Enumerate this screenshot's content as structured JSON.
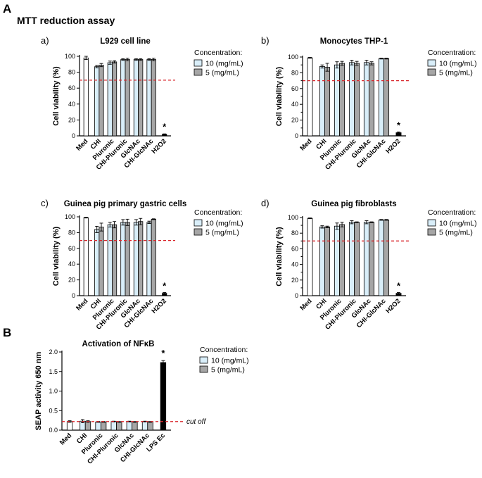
{
  "section_a": {
    "letter": "A",
    "title": "MTT reduction assay"
  },
  "section_b": {
    "letter": "B"
  },
  "colors": {
    "light": "#d9eef9",
    "grey": "#a6a6a6",
    "white": "#ffffff",
    "black": "#000000",
    "cutoff": "#d9262b"
  },
  "chart_data": [
    {
      "id": "a",
      "type": "bar",
      "panel_label": "a)",
      "title": "L929 cell line",
      "ylabel": "Cell viability (%)",
      "xlabel": "",
      "ylim": [
        0,
        100
      ],
      "yticks": [
        0,
        20,
        40,
        60,
        80,
        100
      ],
      "reference_line": 70,
      "legend_title": "Concentration:",
      "legend": [
        "10 (mg/mL)",
        "5 (mg/mL)"
      ],
      "categories": [
        "Med",
        "CHI",
        "Pluronic",
        "CHI-Pluronic",
        "GlcNAc",
        "CHI-GlcNAc",
        "H2O2"
      ],
      "bars": [
        {
          "cat": 0,
          "value": 98,
          "err": 2,
          "style": "white"
        },
        {
          "cat": 1,
          "value": 87,
          "err": 1.5,
          "style": "light"
        },
        {
          "cat": 1,
          "value": 89,
          "err": 2,
          "style": "grey"
        },
        {
          "cat": 2,
          "value": 92,
          "err": 2,
          "style": "light"
        },
        {
          "cat": 2,
          "value": 93,
          "err": 1.5,
          "style": "grey"
        },
        {
          "cat": 3,
          "value": 96,
          "err": 1,
          "style": "light"
        },
        {
          "cat": 3,
          "value": 96,
          "err": 1.5,
          "style": "grey"
        },
        {
          "cat": 4,
          "value": 96,
          "err": 1,
          "style": "light"
        },
        {
          "cat": 4,
          "value": 96,
          "err": 1,
          "style": "grey"
        },
        {
          "cat": 5,
          "value": 96,
          "err": 1,
          "style": "light"
        },
        {
          "cat": 5,
          "value": 96,
          "err": 1.5,
          "style": "grey"
        },
        {
          "cat": 6,
          "value": 2,
          "err": 0.5,
          "style": "black"
        }
      ],
      "annotations": [
        {
          "cat": 6,
          "value": 2,
          "text": "*"
        }
      ]
    },
    {
      "id": "b",
      "type": "bar",
      "panel_label": "b)",
      "title": "Monocytes THP-1",
      "ylabel": "Cell viability (%)",
      "xlabel": "",
      "ylim": [
        0,
        100
      ],
      "yticks": [
        0,
        10,
        20,
        30,
        40,
        50,
        60,
        70,
        80,
        90,
        100
      ],
      "reference_line": 70,
      "legend_title": "Concentration:",
      "legend": [
        "10 (mg/mL)",
        "5 (mg/mL)"
      ],
      "categories": [
        "Med",
        "CHI",
        "Pluronic",
        "CHI-Pluronic",
        "GlcNAc",
        "CHI-GlcNAc",
        "H2O2"
      ],
      "bars": [
        {
          "cat": 0,
          "value": 99,
          "err": 0.5,
          "style": "white"
        },
        {
          "cat": 1,
          "value": 88,
          "err": 2,
          "style": "light"
        },
        {
          "cat": 1,
          "value": 87,
          "err": 5,
          "style": "grey"
        },
        {
          "cat": 2,
          "value": 90,
          "err": 4,
          "style": "light"
        },
        {
          "cat": 2,
          "value": 92,
          "err": 2.5,
          "style": "grey"
        },
        {
          "cat": 3,
          "value": 93,
          "err": 3,
          "style": "light"
        },
        {
          "cat": 3,
          "value": 92,
          "err": 2.5,
          "style": "grey"
        },
        {
          "cat": 4,
          "value": 93,
          "err": 3,
          "style": "light"
        },
        {
          "cat": 4,
          "value": 92,
          "err": 2,
          "style": "grey"
        },
        {
          "cat": 5,
          "value": 98,
          "err": 0.5,
          "style": "light"
        },
        {
          "cat": 5,
          "value": 98,
          "err": 0.5,
          "style": "grey"
        },
        {
          "cat": 6,
          "value": 4,
          "err": 1,
          "style": "black"
        }
      ],
      "annotations": [
        {
          "cat": 6,
          "value": 4,
          "text": "*"
        }
      ]
    },
    {
      "id": "c",
      "type": "bar",
      "panel_label": "c)",
      "title": "Guinea pig primary gastric cells",
      "ylabel": "Cell viability (%)",
      "xlabel": "",
      "ylim": [
        0,
        100
      ],
      "yticks": [
        0,
        20,
        40,
        60,
        80,
        100
      ],
      "reference_line": 70,
      "legend_title": "Concentration:",
      "legend": [
        "10 (mg/mL)",
        "5 (mg/mL)"
      ],
      "categories": [
        "Med",
        "CHI",
        "Pluronic",
        "CHI-Pluronic",
        "GlcNAc",
        "CHI-GlcNAc",
        "H2O2"
      ],
      "bars": [
        {
          "cat": 0,
          "value": 99,
          "err": 0.5,
          "style": "white"
        },
        {
          "cat": 1,
          "value": 84,
          "err": 4,
          "style": "light"
        },
        {
          "cat": 1,
          "value": 87,
          "err": 5,
          "style": "grey"
        },
        {
          "cat": 2,
          "value": 90,
          "err": 3,
          "style": "light"
        },
        {
          "cat": 2,
          "value": 90,
          "err": 4,
          "style": "grey"
        },
        {
          "cat": 3,
          "value": 93,
          "err": 3.5,
          "style": "light"
        },
        {
          "cat": 3,
          "value": 93,
          "err": 4,
          "style": "grey"
        },
        {
          "cat": 4,
          "value": 93,
          "err": 3.5,
          "style": "light"
        },
        {
          "cat": 4,
          "value": 94,
          "err": 4,
          "style": "grey"
        },
        {
          "cat": 5,
          "value": 93,
          "err": 1.5,
          "style": "light"
        },
        {
          "cat": 5,
          "value": 97,
          "err": 0.5,
          "style": "grey"
        },
        {
          "cat": 6,
          "value": 3,
          "err": 1,
          "style": "black"
        }
      ],
      "annotations": [
        {
          "cat": 6,
          "value": 3,
          "text": "*"
        }
      ]
    },
    {
      "id": "d",
      "type": "bar",
      "panel_label": "d)",
      "title": "Guinea pig fibroblasts",
      "ylabel": "Cell viability (%)",
      "xlabel": "",
      "ylim": [
        0,
        100
      ],
      "yticks": [
        0,
        10,
        20,
        30,
        40,
        50,
        60,
        70,
        80,
        90,
        100
      ],
      "reference_line": 70,
      "legend_title": "Concentration:",
      "legend": [
        "10 (mg/mL)",
        "5 (mg/mL)"
      ],
      "categories": [
        "Med",
        "CHI",
        "Pluronic",
        "CHI-Pluronic",
        "GlcNAc",
        "CHI-GlcNAc",
        "H2O2"
      ],
      "bars": [
        {
          "cat": 0,
          "value": 99,
          "err": 0.5,
          "style": "white"
        },
        {
          "cat": 1,
          "value": 88,
          "err": 1.5,
          "style": "light"
        },
        {
          "cat": 1,
          "value": 88,
          "err": 1,
          "style": "grey"
        },
        {
          "cat": 2,
          "value": 89,
          "err": 4,
          "style": "light"
        },
        {
          "cat": 2,
          "value": 91,
          "err": 3,
          "style": "grey"
        },
        {
          "cat": 3,
          "value": 94,
          "err": 2,
          "style": "light"
        },
        {
          "cat": 3,
          "value": 94,
          "err": 0.5,
          "style": "grey"
        },
        {
          "cat": 4,
          "value": 94,
          "err": 2,
          "style": "light"
        },
        {
          "cat": 4,
          "value": 94,
          "err": 0.5,
          "style": "grey"
        },
        {
          "cat": 5,
          "value": 97,
          "err": 0.5,
          "style": "light"
        },
        {
          "cat": 5,
          "value": 97,
          "err": 0.5,
          "style": "grey"
        },
        {
          "cat": 6,
          "value": 3,
          "err": 1,
          "style": "black"
        }
      ],
      "annotations": [
        {
          "cat": 6,
          "value": 3,
          "text": "*"
        }
      ]
    },
    {
      "id": "B",
      "type": "bar",
      "panel_label": "",
      "title": "Activation of NFκB",
      "ylabel": "SEAP activity  650 nm",
      "xlabel": "",
      "ylim": [
        0,
        2.0
      ],
      "yticks": [
        0,
        0.5,
        1.0,
        1.5,
        2.0
      ],
      "ytick_labels": [
        "0.0",
        "0.5",
        "1.0",
        "1.5",
        "2.0"
      ],
      "reference_line": 0.22,
      "reference_label": "cut off",
      "legend_title": "Concentration:",
      "legend": [
        "10 (mg/mL)",
        "5 (mg/mL)"
      ],
      "categories": [
        "Med",
        "CHI",
        "Pluronic",
        "CHI-Pluronic",
        "GlcNAc",
        "CHI-GlcNAc",
        "LPS Ec"
      ],
      "bars": [
        {
          "cat": 0,
          "value": 0.22,
          "err": 0.02,
          "style": "white"
        },
        {
          "cat": 1,
          "value": 0.23,
          "err": 0.04,
          "style": "light"
        },
        {
          "cat": 1,
          "value": 0.22,
          "err": 0.02,
          "style": "grey"
        },
        {
          "cat": 2,
          "value": 0.21,
          "err": 0.01,
          "style": "light"
        },
        {
          "cat": 2,
          "value": 0.21,
          "err": 0.01,
          "style": "grey"
        },
        {
          "cat": 3,
          "value": 0.22,
          "err": 0.01,
          "style": "light"
        },
        {
          "cat": 3,
          "value": 0.21,
          "err": 0.01,
          "style": "grey"
        },
        {
          "cat": 4,
          "value": 0.22,
          "err": 0.01,
          "style": "light"
        },
        {
          "cat": 4,
          "value": 0.21,
          "err": 0.01,
          "style": "grey"
        },
        {
          "cat": 5,
          "value": 0.22,
          "err": 0.01,
          "style": "light"
        },
        {
          "cat": 5,
          "value": 0.21,
          "err": 0.01,
          "style": "grey"
        },
        {
          "cat": 6,
          "value": 1.73,
          "err": 0.05,
          "style": "black"
        }
      ],
      "annotations": [
        {
          "cat": 6,
          "value": 1.78,
          "text": "*"
        }
      ]
    }
  ]
}
